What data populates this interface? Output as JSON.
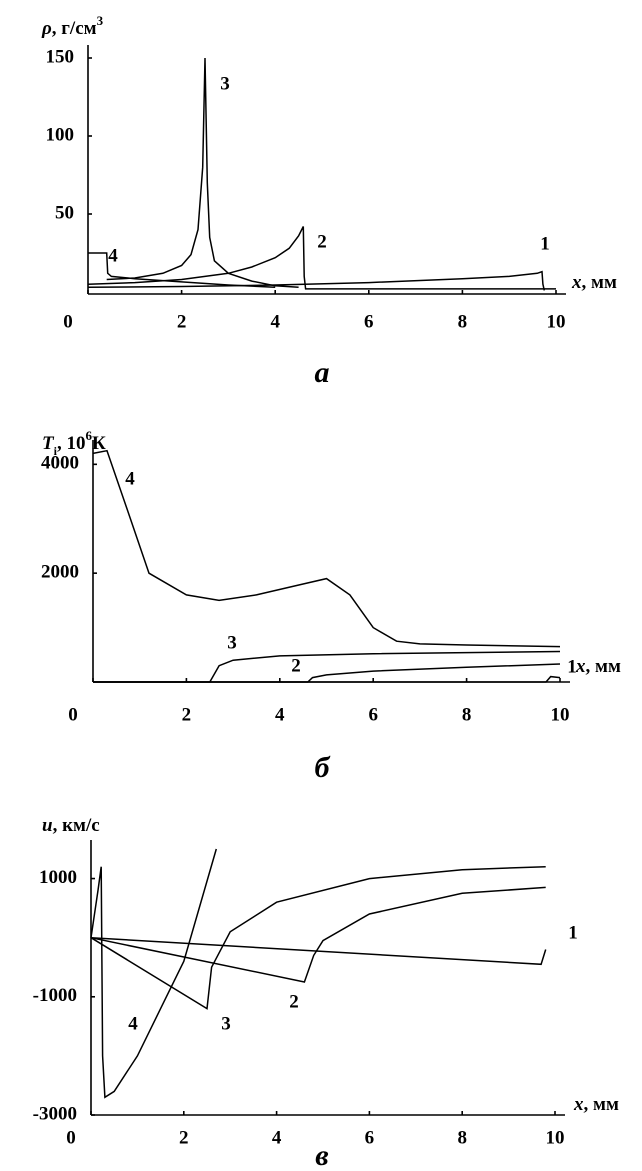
{
  "chart_data": [
    {
      "type": "line",
      "ylabel": [
        "ρ",
        ", г/см",
        "3"
      ],
      "xlabel": [
        "x",
        ", мм"
      ],
      "panel": "а",
      "xlim": [
        0,
        10
      ],
      "xticks": [
        0,
        2,
        4,
        6,
        8,
        10
      ],
      "ylim": [
        0,
        150
      ],
      "yticks": [
        50,
        100,
        150
      ],
      "series": [
        {
          "name": "1",
          "color": "#000000",
          "x": [
            0,
            2,
            4,
            6,
            8,
            9,
            9.6,
            9.7,
            9.72,
            9.75
          ],
          "values": [
            3,
            3.5,
            4.5,
            6,
            8.5,
            10,
            12,
            13,
            5,
            1
          ]
        },
        {
          "name": "2",
          "color": "#000000",
          "x": [
            0,
            1,
            2,
            3,
            3.5,
            4,
            4.3,
            4.5,
            4.6,
            4.62,
            4.65,
            6,
            8,
            10
          ],
          "values": [
            5,
            6,
            8,
            12,
            16,
            22,
            28,
            36,
            42,
            10,
            2,
            2,
            2,
            2
          ]
        },
        {
          "name": "3",
          "color": "#000000",
          "x": [
            0.4,
            1,
            1.6,
            2,
            2.2,
            2.35,
            2.45,
            2.5,
            2.55,
            2.6,
            2.7,
            3,
            3.5,
            4,
            4.5
          ],
          "values": [
            8,
            9,
            12,
            17,
            24,
            40,
            80,
            150,
            70,
            35,
            20,
            12,
            7,
            4,
            3
          ]
        },
        {
          "name": "4",
          "color": "#000000",
          "x": [
            0,
            0.4,
            0.42,
            0.5,
            1,
            2,
            3,
            4
          ],
          "values": [
            25,
            25,
            12,
            10,
            8.5,
            6.5,
            4.5,
            3
          ]
        }
      ]
    },
    {
      "type": "line",
      "ylabel": [
        "T",
        "i",
        ", 10",
        "6",
        "К"
      ],
      "xlabel": [
        "x",
        ", мм"
      ],
      "panel": "б",
      "xlim": [
        0,
        10
      ],
      "xticks": [
        0,
        2,
        4,
        6,
        8,
        10
      ],
      "ylim": [
        0,
        4300
      ],
      "yticks": [
        2000,
        4000
      ],
      "series": [
        {
          "name": "1",
          "color": "#000000",
          "x": [
            0,
            9.7,
            9.8,
            10
          ],
          "values": [
            0,
            0,
            100,
            80
          ]
        },
        {
          "name": "2",
          "color": "#000000",
          "x": [
            0,
            4.6,
            4.7,
            5,
            6,
            8,
            10
          ],
          "values": [
            0,
            0,
            80,
            130,
            200,
            270,
            330
          ]
        },
        {
          "name": "3",
          "color": "#000000",
          "x": [
            0,
            2.5,
            2.7,
            3,
            4,
            6,
            10
          ],
          "values": [
            0,
            0,
            300,
            400,
            480,
            520,
            560
          ]
        },
        {
          "name": "4",
          "color": "#000000",
          "x": [
            0,
            0.3,
            0.8,
            1.2,
            2,
            2.7,
            3.5,
            4.5,
            5,
            5.5,
            6,
            6.5,
            7,
            8,
            10
          ],
          "values": [
            4200,
            4250,
            3000,
            2000,
            1600,
            1500,
            1600,
            1800,
            1900,
            1600,
            1000,
            750,
            700,
            680,
            650
          ]
        }
      ]
    },
    {
      "type": "line",
      "ylabel": [
        "u",
        ", км/с"
      ],
      "xlabel": [
        "x",
        ", мм"
      ],
      "panel": "в",
      "xlim": [
        0,
        10
      ],
      "xticks": [
        0,
        2,
        4,
        6,
        8,
        10
      ],
      "ylim": [
        -3000,
        1500
      ],
      "yticks": [
        -3000,
        -1000,
        1000
      ],
      "series": [
        {
          "name": "1",
          "color": "#000000",
          "x": [
            0,
            9.7,
            9.8
          ],
          "values": [
            0,
            -450,
            -200
          ]
        },
        {
          "name": "2",
          "color": "#000000",
          "x": [
            0,
            4.6,
            4.8,
            5,
            6,
            8,
            9.8
          ],
          "values": [
            0,
            -750,
            -300,
            -50,
            400,
            750,
            850
          ]
        },
        {
          "name": "3",
          "color": "#000000",
          "x": [
            0,
            2.5,
            2.6,
            3,
            4,
            6,
            8,
            9.8
          ],
          "values": [
            0,
            -1200,
            -500,
            100,
            600,
            1000,
            1150,
            1200
          ]
        },
        {
          "name": "4",
          "color": "#000000",
          "x": [
            0,
            0.15,
            0.22,
            0.25,
            0.3,
            0.5,
            1,
            1.5,
            2,
            2.7
          ],
          "values": [
            0,
            800,
            1200,
            -2000,
            -2700,
            -2600,
            -2000,
            -1200,
            -400,
            1500
          ]
        }
      ]
    }
  ]
}
